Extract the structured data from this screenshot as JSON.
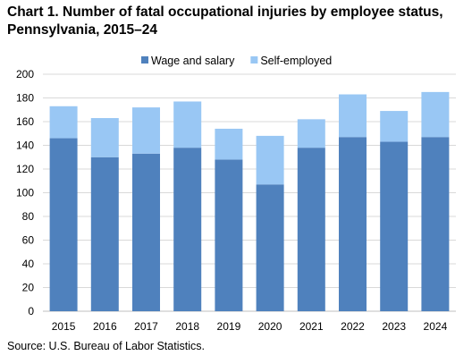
{
  "title": "Chart 1. Number of fatal occupational injuries by employee status, Pennsylvania, 2015–24",
  "source": "Source: U.S. Bureau of Labor Statistics.",
  "chart_data": {
    "type": "bar",
    "stacked": true,
    "categories": [
      "2015",
      "2016",
      "2017",
      "2018",
      "2019",
      "2020",
      "2021",
      "2022",
      "2023",
      "2024"
    ],
    "series": [
      {
        "name": "Wage and salary",
        "color": "#4f81bd",
        "values": [
          146,
          130,
          133,
          138,
          128,
          107,
          138,
          147,
          143,
          147
        ]
      },
      {
        "name": "Self-employed",
        "color": "#99c7f4",
        "values": [
          27,
          33,
          39,
          39,
          26,
          41,
          24,
          36,
          26,
          38
        ]
      }
    ],
    "ylim": [
      0,
      200
    ],
    "yticks": [
      0,
      20,
      40,
      60,
      80,
      100,
      120,
      140,
      160,
      180,
      200
    ],
    "grid": true,
    "legend_position": "top"
  }
}
